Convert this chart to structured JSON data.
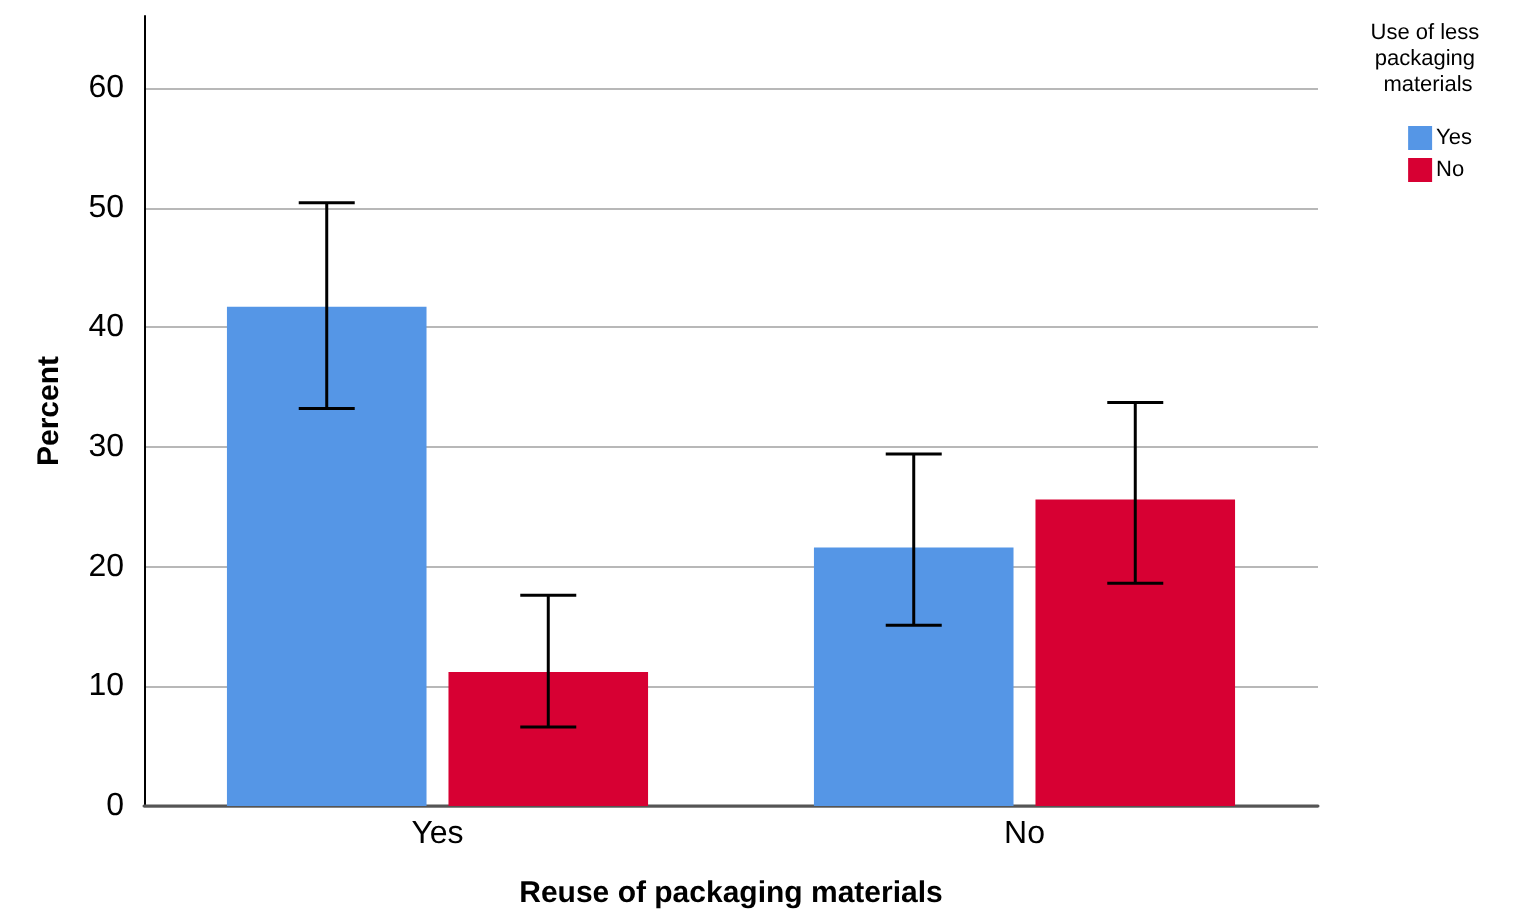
{
  "chart_data": {
    "type": "bar",
    "categories": [
      "Yes",
      "No"
    ],
    "series": [
      {
        "name": "Yes",
        "color": "#5596e6",
        "values": [
          41.7,
          21.6
        ],
        "errors": [
          [
            33.2,
            50.4
          ],
          [
            15.1,
            29.4
          ]
        ]
      },
      {
        "name": "No",
        "color": "#d70033",
        "values": [
          11.2,
          25.6
        ],
        "errors": [
          [
            6.6,
            17.6
          ],
          [
            18.6,
            33.7
          ]
        ]
      }
    ],
    "xlabel": "Reuse of packaging materials",
    "ylabel": "Percent",
    "legend_title": "Use of less packaging materials",
    "ylim": [
      0,
      66
    ],
    "yticks": [
      0,
      10,
      20,
      30,
      40,
      50,
      60
    ],
    "grid": "y",
    "legend": "top right"
  }
}
